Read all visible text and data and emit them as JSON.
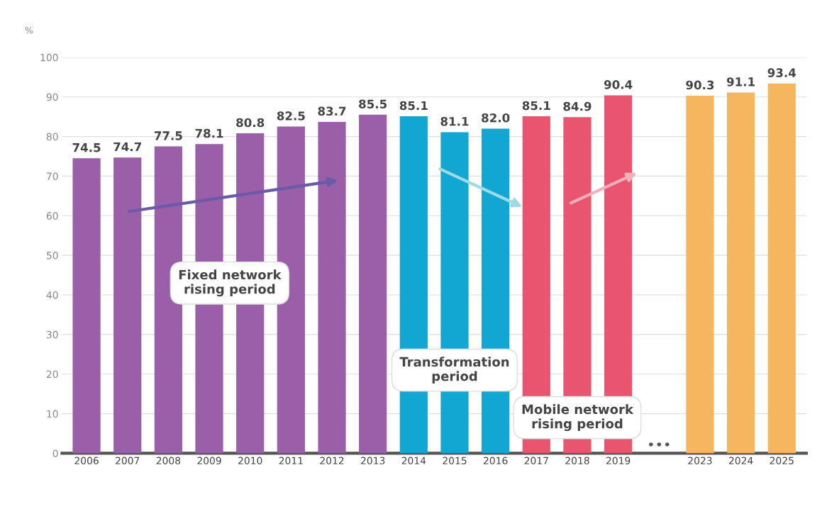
{
  "chart_data": {
    "type": "bar",
    "categories": [
      "2006",
      "2007",
      "2008",
      "2009",
      "2010",
      "2011",
      "2012",
      "2013",
      "2014",
      "2015",
      "2016",
      "2017",
      "2018",
      "2019",
      null,
      "2023",
      "2024",
      "2025"
    ],
    "values": [
      74.5,
      74.7,
      77.5,
      78.1,
      80.8,
      82.5,
      83.7,
      85.5,
      85.1,
      81.1,
      82.0,
      85.1,
      84.9,
      90.4,
      null,
      90.3,
      91.1,
      93.4
    ],
    "colors": [
      "#9a5fa8",
      "#9a5fa8",
      "#9a5fa8",
      "#9a5fa8",
      "#9a5fa8",
      "#9a5fa8",
      "#9a5fa8",
      "#9a5fa8",
      "#12a6d2",
      "#12a6d2",
      "#12a6d2",
      "#e9546e",
      "#e9546e",
      "#e9546e",
      "#ffffff",
      "#f6b660",
      "#f6b660",
      "#f6b660"
    ],
    "ylabel": "%",
    "ylim": [
      0,
      100
    ],
    "yticks": [
      0,
      10,
      20,
      30,
      40,
      50,
      60,
      70,
      80,
      90,
      100
    ],
    "grid": "y",
    "value_labels": [
      "74.5",
      "74.7",
      "77.5",
      "78.1",
      "80.8",
      "82.5",
      "83.7",
      "85.5",
      "85.1",
      "81.1",
      "82.0",
      "85.1",
      "84.9",
      "90.4",
      null,
      "90.3",
      "91.1",
      "93.4"
    ],
    "annotations": [
      "Fixed network\nrising period",
      "Transformation\nperiod",
      "Mobile network\nrising period",
      "•••"
    ]
  }
}
